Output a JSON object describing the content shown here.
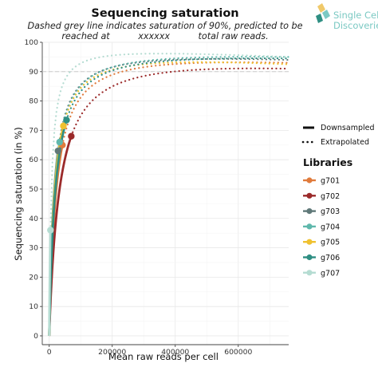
{
  "logo": {
    "line1": "Single Cell",
    "line2": "Discoveries"
  },
  "chart_data": {
    "type": "line",
    "title": "Sequencing saturation",
    "subtitle_line1": "Dashed grey line indicates saturation of 90%, predicted to be",
    "subtitle_line2": "reached at          xxxxxx          total raw reads.",
    "xlabel": "Mean raw reads per cell",
    "ylabel": "Sequencing saturation (in %)",
    "xlim": [
      -22000,
      760000
    ],
    "ylim": [
      -3,
      100
    ],
    "x_ticks": [
      0,
      200000,
      400000,
      600000
    ],
    "x_tick_labels": [
      "0",
      "200000",
      "400000",
      "600000"
    ],
    "y_ticks": [
      0,
      10,
      20,
      30,
      40,
      50,
      60,
      70,
      80,
      90,
      100
    ],
    "y_tick_labels": [
      "0",
      "10",
      "20",
      "30",
      "40",
      "50",
      "60",
      "70",
      "80",
      "90",
      "100"
    ],
    "reference_line": {
      "y": 90,
      "style": "dashed",
      "color": "#cccccc"
    },
    "grid": true,
    "line_type_legend": {
      "downsampled": "Downsampled",
      "extrapolated": "Extrapolated"
    },
    "legend_title": "Libraries",
    "legend_position": "right",
    "series": [
      {
        "name": "g701",
        "color": "#e07b3c",
        "endpoint": [
          42000,
          65
        ],
        "extrapolated_end_y": 93
      },
      {
        "name": "g702",
        "color": "#9b2a2a",
        "endpoint": [
          70000,
          68
        ],
        "extrapolated_end_y": 91
      },
      {
        "name": "g703",
        "color": "#5f7878",
        "endpoint": [
          28000,
          63
        ],
        "extrapolated_end_y": 94
      },
      {
        "name": "g704",
        "color": "#5fb8ac",
        "endpoint": [
          33000,
          66
        ],
        "extrapolated_end_y": 95
      },
      {
        "name": "g705",
        "color": "#efc130",
        "endpoint": [
          45000,
          71.5
        ],
        "extrapolated_end_y": 92.5
      },
      {
        "name": "g706",
        "color": "#2f8f83",
        "endpoint": [
          55000,
          73.5
        ],
        "extrapolated_end_y": 94.5
      },
      {
        "name": "g707",
        "color": "#b5dcd2",
        "endpoint": [
          4000,
          36
        ],
        "extrapolated_end_y": 95
      }
    ]
  }
}
